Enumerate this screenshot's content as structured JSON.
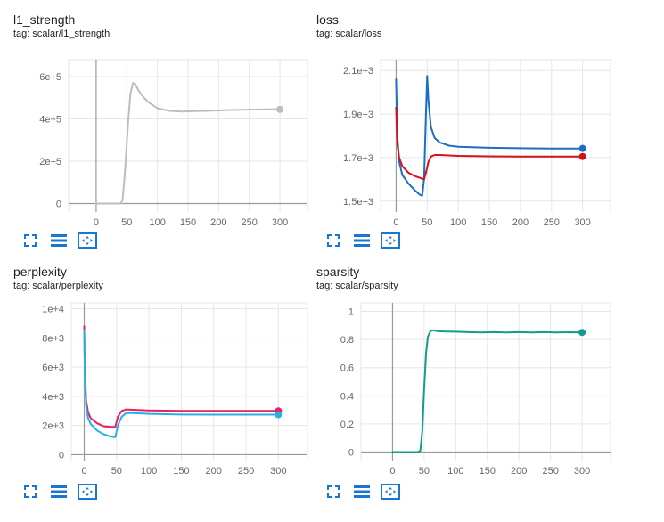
{
  "accent_color": "#1976d2",
  "toolbar": {
    "icons": [
      "fullscreen-icon",
      "list-icon",
      "fit-domain-icon"
    ]
  },
  "chart_data": [
    {
      "type": "line",
      "title": "l1_strength",
      "tag": "tag: scalar/l1_strength",
      "xlim": [
        -45,
        345
      ],
      "ylim": [
        -40000,
        680000
      ],
      "xticks": [
        0,
        50,
        100,
        150,
        200,
        250,
        300
      ],
      "xtick_labels": [
        "0",
        "50",
        "100",
        "150",
        "200",
        "250",
        "300"
      ],
      "yticks": [
        0,
        200000,
        400000,
        600000
      ],
      "ytick_labels": [
        "0",
        "2e+5",
        "4e+5",
        "6e+5"
      ],
      "grid": true,
      "series": [
        {
          "color": "#bdbdbd",
          "x": [
            0,
            40,
            43,
            47,
            52,
            56,
            60,
            64,
            68,
            75,
            85,
            100,
            120,
            140,
            160,
            180,
            200,
            220,
            240,
            260,
            280,
            300
          ],
          "y": [
            0,
            0,
            15000,
            150000,
            380000,
            520000,
            570000,
            565000,
            540000,
            510000,
            480000,
            450000,
            438000,
            435000,
            437000,
            438000,
            440000,
            442000,
            443000,
            444000,
            445000,
            445000
          ]
        }
      ]
    },
    {
      "type": "line",
      "title": "loss",
      "tag": "tag: scalar/loss",
      "xlim": [
        -25,
        345
      ],
      "ylim": [
        1450,
        2150
      ],
      "xticks": [
        0,
        50,
        100,
        150,
        200,
        250,
        300
      ],
      "xtick_labels": [
        "0",
        "50",
        "100",
        "150",
        "200",
        "250",
        "300"
      ],
      "yticks": [
        1500,
        1700,
        1900,
        2100
      ],
      "ytick_labels": [
        "1.5e+3",
        "1.7e+3",
        "1.9e+3",
        "2.1e+3"
      ],
      "grid": true,
      "series": [
        {
          "color": "#1a6fc4",
          "x": [
            0,
            2,
            5,
            10,
            20,
            30,
            38,
            42,
            45,
            48,
            50,
            52,
            56,
            62,
            70,
            85,
            100,
            150,
            200,
            250,
            300
          ],
          "y": [
            2060,
            1800,
            1680,
            1620,
            1580,
            1550,
            1530,
            1525,
            1600,
            1900,
            2075,
            1960,
            1840,
            1790,
            1770,
            1755,
            1750,
            1745,
            1743,
            1742,
            1742
          ]
        },
        {
          "color": "#d0141c",
          "x": [
            0,
            2,
            5,
            10,
            20,
            30,
            40,
            45,
            48,
            52,
            56,
            62,
            70,
            85,
            100,
            150,
            200,
            250,
            300
          ],
          "y": [
            1930,
            1760,
            1700,
            1660,
            1630,
            1615,
            1605,
            1600,
            1630,
            1680,
            1705,
            1712,
            1712,
            1710,
            1708,
            1706,
            1705,
            1705,
            1705
          ]
        }
      ]
    },
    {
      "type": "line",
      "title": "perplexity",
      "tag": "tag: scalar/perplexity",
      "xlim": [
        -20,
        345
      ],
      "ylim": [
        -400,
        10400
      ],
      "xticks": [
        0,
        50,
        100,
        150,
        200,
        250,
        300
      ],
      "xtick_labels": [
        "0",
        "50",
        "100",
        "150",
        "200",
        "250",
        "300"
      ],
      "yticks": [
        0,
        2000,
        4000,
        6000,
        8000,
        10000
      ],
      "ytick_labels": [
        "0",
        "2e+3",
        "4e+3",
        "6e+3",
        "8e+3",
        "1e+4"
      ],
      "grid": true,
      "series": [
        {
          "color": "#e91e63",
          "x": [
            0,
            1,
            3,
            6,
            10,
            20,
            30,
            40,
            48,
            52,
            58,
            65,
            75,
            100,
            150,
            200,
            250,
            300
          ],
          "y": [
            8800,
            5800,
            3700,
            2900,
            2500,
            2150,
            1950,
            1900,
            1900,
            2600,
            3000,
            3100,
            3080,
            3030,
            3000,
            3000,
            3000,
            3000
          ]
        },
        {
          "color": "#26b0e6",
          "x": [
            0,
            1,
            3,
            6,
            10,
            20,
            30,
            40,
            48,
            52,
            58,
            65,
            75,
            100,
            150,
            200,
            250,
            300
          ],
          "y": [
            8500,
            5400,
            3300,
            2500,
            2100,
            1650,
            1400,
            1250,
            1200,
            2000,
            2600,
            2850,
            2850,
            2800,
            2750,
            2740,
            2740,
            2740
          ]
        }
      ]
    },
    {
      "type": "line",
      "title": "sparsity",
      "tag": "tag: scalar/sparsity",
      "xlim": [
        -50,
        345
      ],
      "ylim": [
        -0.06,
        1.06
      ],
      "xticks": [
        0,
        50,
        100,
        150,
        200,
        250,
        300
      ],
      "xtick_labels": [
        "0",
        "50",
        "100",
        "150",
        "200",
        "250",
        "300"
      ],
      "yticks": [
        0,
        0.2,
        0.4,
        0.6,
        0.8,
        1
      ],
      "ytick_labels": [
        "0",
        "0.2",
        "0.4",
        "0.6",
        "0.8",
        "1"
      ],
      "grid": true,
      "series": [
        {
          "color": "#139b8c",
          "x": [
            0,
            40,
            44,
            47,
            50,
            53,
            56,
            60,
            65,
            70,
            80,
            100,
            120,
            140,
            160,
            180,
            200,
            220,
            240,
            260,
            280,
            300
          ],
          "y": [
            0,
            0,
            0.01,
            0.15,
            0.45,
            0.7,
            0.82,
            0.86,
            0.865,
            0.86,
            0.857,
            0.855,
            0.852,
            0.85,
            0.852,
            0.849,
            0.852,
            0.85,
            0.852,
            0.849,
            0.851,
            0.85
          ]
        }
      ]
    }
  ]
}
